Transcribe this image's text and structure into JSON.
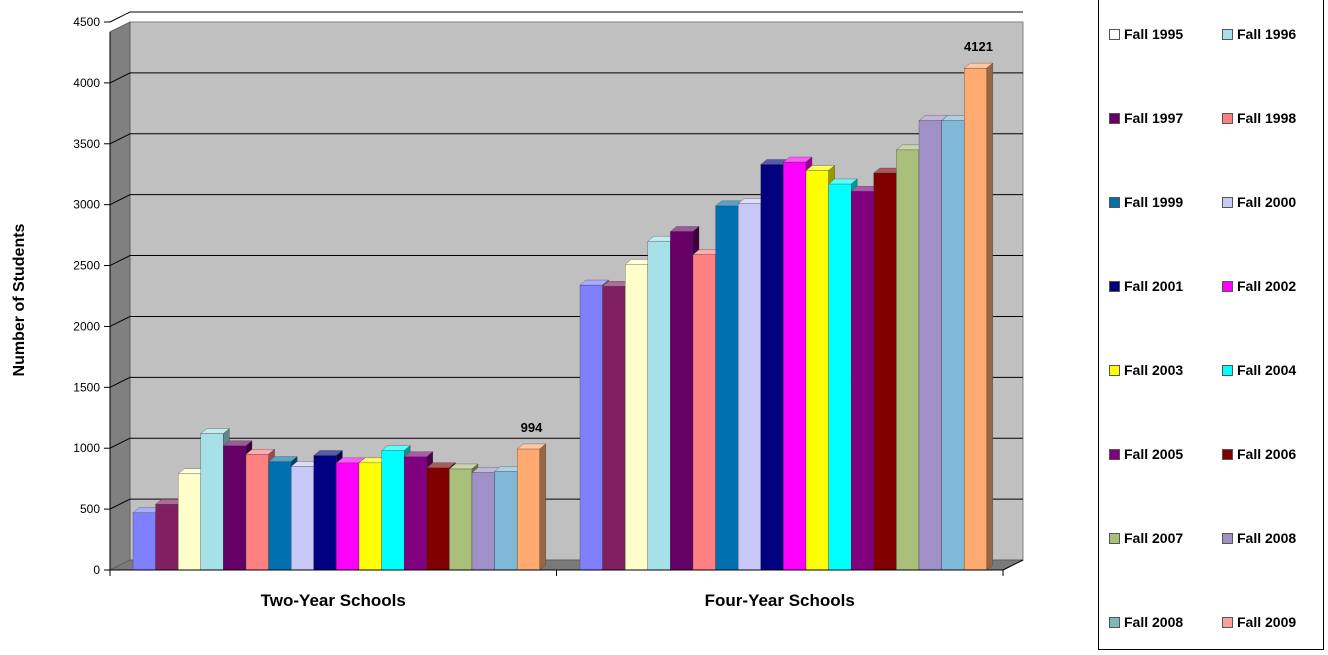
{
  "chart_data": {
    "type": "bar",
    "categories": [
      "Two-Year Schools",
      "Four-Year Schools"
    ],
    "ylabel": "Number of Students",
    "ylim": [
      0,
      4500
    ],
    "yticks": [
      0,
      500,
      1000,
      1500,
      2000,
      2500,
      3000,
      3500,
      4000,
      4500
    ],
    "grid": true,
    "legend_position": "right",
    "series": [
      {
        "name": "Fall 1995",
        "color": "#8080FF",
        "values": [
          470,
          2340
        ]
      },
      {
        "name": "Fall 1996",
        "color": "#802060",
        "values": [
          540,
          2330
        ]
      },
      {
        "name": "Fall 1997",
        "color": "#FFFFCC",
        "values": [
          790,
          2510
        ]
      },
      {
        "name": "Fall 1998",
        "color": "#A6E0E8",
        "values": [
          1120,
          2700
        ]
      },
      {
        "name": "Fall 1999",
        "color": "#660066",
        "values": [
          1020,
          2780
        ]
      },
      {
        "name": "Fall 2000",
        "color": "#FF8080",
        "values": [
          950,
          2590
        ]
      },
      {
        "name": "Fall 2001",
        "color": "#0070B0",
        "values": [
          890,
          2990
        ]
      },
      {
        "name": "Fall 2002",
        "color": "#C8C8F8",
        "values": [
          850,
          3010
        ]
      },
      {
        "name": "Fall 2003",
        "color": "#000080",
        "values": [
          940,
          3330
        ]
      },
      {
        "name": "Fall 2004",
        "color": "#FF00FF",
        "values": [
          880,
          3350
        ]
      },
      {
        "name": "Fall 2005",
        "color": "#FFFF00",
        "values": [
          880,
          3280
        ]
      },
      {
        "name": "Fall 2006",
        "color": "#00FFFF",
        "values": [
          980,
          3170
        ]
      },
      {
        "name": "Fall 2007",
        "color": "#800080",
        "values": [
          930,
          3110
        ]
      },
      {
        "name": "Fall 2008",
        "color": "#800000",
        "values": [
          840,
          3260
        ]
      },
      {
        "name": "Fall 2008",
        "color": "#AAC07A",
        "values": [
          830,
          3450
        ]
      },
      {
        "name": "Fall 2009",
        "color": "#A090C8",
        "values": [
          800,
          3690
        ]
      },
      {
        "name": "",
        "color": "#80B8D8",
        "values": [
          810,
          3690
        ]
      },
      {
        "name": "",
        "color": "#FFAA70",
        "values": [
          994,
          4121
        ]
      }
    ],
    "data_labels": [
      {
        "series": 17,
        "category": 0,
        "text": "994"
      },
      {
        "series": 17,
        "category": 1,
        "text": "4121"
      }
    ]
  },
  "legend": {
    "items": [
      {
        "label": "Fall 1995",
        "color": "#FFFFFF"
      },
      {
        "label": "Fall 1996",
        "color": "#A6E0E8"
      },
      {
        "label": "Fall 1997",
        "color": "#660066"
      },
      {
        "label": "Fall 1998",
        "color": "#FF8080"
      },
      {
        "label": "Fall 1999",
        "color": "#0070B0"
      },
      {
        "label": "Fall 2000",
        "color": "#C8C8F8"
      },
      {
        "label": "Fall 2001",
        "color": "#000080"
      },
      {
        "label": "Fall 2002",
        "color": "#FF00FF"
      },
      {
        "label": "Fall 2003",
        "color": "#FFFF00"
      },
      {
        "label": "Fall 2004",
        "color": "#00FFFF"
      },
      {
        "label": "Fall 2005",
        "color": "#800080"
      },
      {
        "label": "Fall 2006",
        "color": "#800000"
      },
      {
        "label": "Fall 2007",
        "color": "#AAC07A"
      },
      {
        "label": "Fall 2008",
        "color": "#A090C8"
      },
      {
        "label": "Fall 2008",
        "color": "#80B8B8"
      },
      {
        "label": "Fall 2009",
        "color": "#FFA0A0"
      }
    ]
  }
}
